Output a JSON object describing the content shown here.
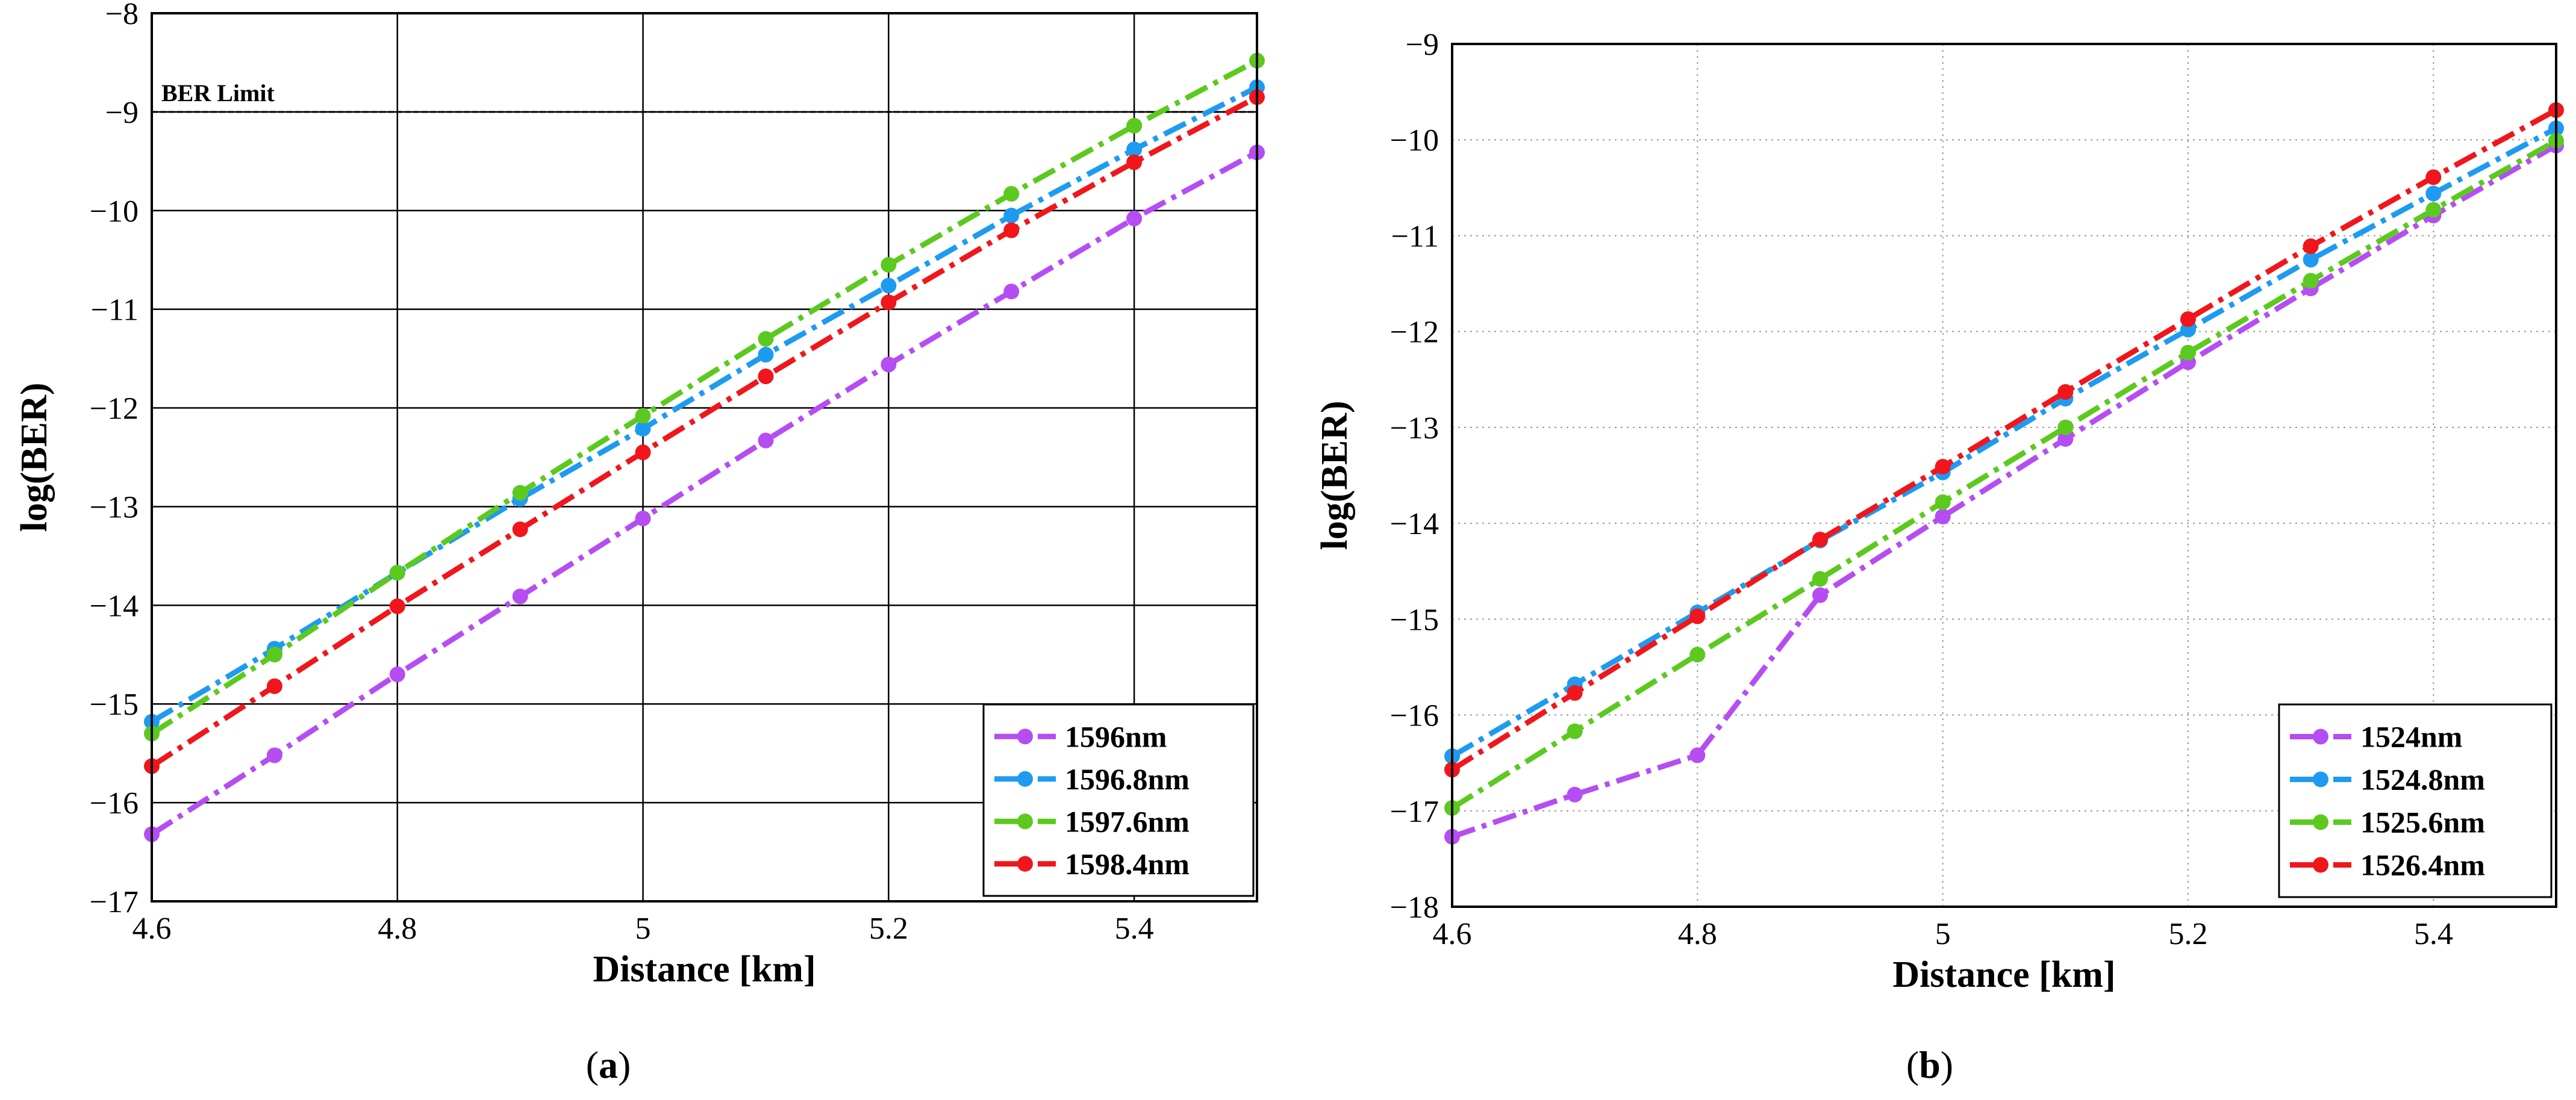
{
  "chart_data": [
    {
      "type": "line",
      "panel_label": "a",
      "xlabel": "Distance [km]",
      "ylabel": "log(BER)",
      "xlim": [
        4.6,
        5.5
      ],
      "ylim": [
        -17,
        -8
      ],
      "xticks": [
        4.6,
        4.8,
        5.0,
        5.2,
        5.4
      ],
      "xtick_labels": [
        "4.6",
        "4.8",
        "5",
        "5.2",
        "5.4"
      ],
      "yticks": [
        -17,
        -16,
        -15,
        -14,
        -13,
        -12,
        -11,
        -10,
        -9,
        -8
      ],
      "ytick_labels": [
        "−17",
        "−16",
        "−15",
        "−14",
        "−13",
        "−12",
        "−11",
        "−10",
        "−9",
        "−8"
      ],
      "grid": true,
      "legend_position": "bottom-right",
      "x": [
        4.6,
        4.7,
        4.8,
        4.9,
        5.0,
        5.1,
        5.2,
        5.3,
        5.4,
        5.5
      ],
      "ber_limit": {
        "value": -9,
        "label": "BER Limit"
      },
      "series": [
        {
          "name": "1596nm",
          "color": "#b54df3",
          "values": [
            -16.32,
            -15.52,
            -14.7,
            -13.91,
            -13.12,
            -12.33,
            -11.56,
            -10.82,
            -10.08,
            -9.41
          ]
        },
        {
          "name": "1596.8nm",
          "color": "#1e9bf0",
          "values": [
            -15.18,
            -14.44,
            -13.67,
            -12.92,
            -12.21,
            -11.46,
            -10.76,
            -10.05,
            -9.38,
            -8.75
          ]
        },
        {
          "name": "1597.6nm",
          "color": "#5cc91f",
          "values": [
            -15.3,
            -14.5,
            -13.67,
            -12.86,
            -12.08,
            -11.3,
            -10.55,
            -9.83,
            -9.14,
            -8.48
          ]
        },
        {
          "name": "1598.4nm",
          "color": "#f0161b",
          "values": [
            -15.63,
            -14.82,
            -14.01,
            -13.23,
            -12.45,
            -11.68,
            -10.93,
            -10.2,
            -9.51,
            -8.85
          ]
        }
      ]
    },
    {
      "type": "line",
      "panel_label": "b",
      "xlabel": "Distance [km]",
      "ylabel": "log(BER)",
      "xlim": [
        4.6,
        5.5
      ],
      "ylim": [
        -18,
        -9
      ],
      "xticks": [
        4.6,
        4.8,
        5.0,
        5.2,
        5.4
      ],
      "xtick_labels": [
        "4.6",
        "4.8",
        "5",
        "5.2",
        "5.4"
      ],
      "yticks": [
        -18,
        -17,
        -16,
        -15,
        -14,
        -13,
        -12,
        -11,
        -10,
        -9
      ],
      "ytick_labels": [
        "−18",
        "−17",
        "−16",
        "−15",
        "−14",
        "−13",
        "−12",
        "−11",
        "−10",
        "−9"
      ],
      "grid": true,
      "legend_position": "bottom-right",
      "x": [
        4.6,
        4.7,
        4.8,
        4.9,
        5.0,
        5.1,
        5.2,
        5.3,
        5.4,
        5.5
      ],
      "series": [
        {
          "name": "1524nm",
          "color": "#b54df3",
          "values": [
            -17.27,
            -16.83,
            -16.42,
            -14.75,
            -13.93,
            -13.12,
            -12.32,
            -11.55,
            -10.79,
            -10.06
          ]
        },
        {
          "name": "1524.8nm",
          "color": "#1e9bf0",
          "values": [
            -16.43,
            -15.68,
            -14.93,
            -14.18,
            -13.47,
            -12.7,
            -11.98,
            -11.25,
            -10.56,
            -9.88
          ]
        },
        {
          "name": "1525.6nm",
          "color": "#5cc91f",
          "values": [
            -16.97,
            -16.17,
            -15.37,
            -14.58,
            -13.78,
            -13.0,
            -12.22,
            -11.47,
            -10.73,
            -10.01
          ]
        },
        {
          "name": "1526.4nm",
          "color": "#f0161b",
          "values": [
            -16.57,
            -15.77,
            -14.97,
            -14.17,
            -13.41,
            -12.63,
            -11.87,
            -11.11,
            -10.39,
            -9.69
          ]
        }
      ]
    }
  ]
}
